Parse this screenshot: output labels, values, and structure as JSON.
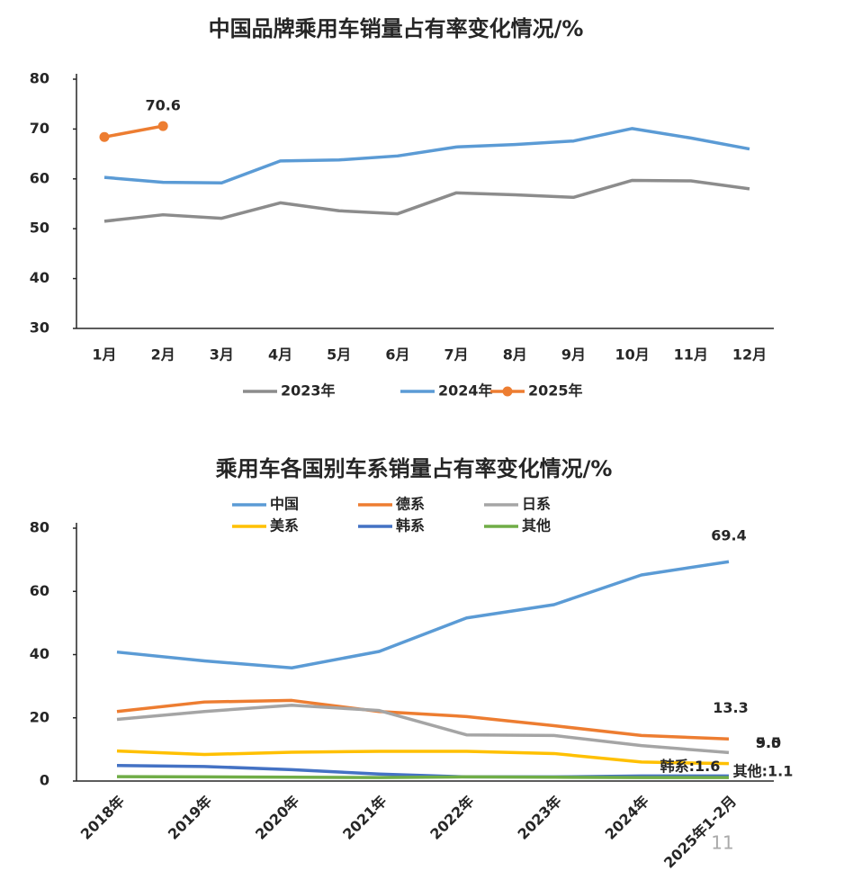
{
  "chart_data": [
    {
      "type": "line",
      "title": "中国品牌乘用车销量占有率变化情况/%",
      "categories": [
        "1月",
        "2月",
        "3月",
        "4月",
        "5月",
        "6月",
        "7月",
        "8月",
        "9月",
        "10月",
        "11月",
        "12月"
      ],
      "series": [
        {
          "name": "2023年",
          "color": "#8c8c8c",
          "values": [
            51.5,
            52.8,
            52.1,
            55.2,
            53.6,
            53.0,
            57.2,
            56.8,
            56.3,
            59.7,
            59.6,
            58.0
          ]
        },
        {
          "name": "2024年",
          "color": "#5b9bd5",
          "values": [
            60.3,
            59.3,
            59.2,
            63.6,
            63.8,
            64.6,
            66.4,
            66.9,
            67.6,
            70.1,
            68.2,
            66.0
          ]
        },
        {
          "name": "2025年",
          "color": "#ed7d31",
          "markers": true,
          "values": [
            68.4,
            70.6,
            null,
            null,
            null,
            null,
            null,
            null,
            null,
            null,
            null,
            null
          ],
          "value_labels": [
            null,
            "70.6",
            null,
            null,
            null,
            null,
            null,
            null,
            null,
            null,
            null,
            null
          ]
        }
      ],
      "ylim": [
        30,
        80
      ],
      "yticks": [
        30,
        40,
        50,
        60,
        70,
        80
      ],
      "grid": false,
      "legend": "bottom"
    },
    {
      "type": "line",
      "title": "乘用车各国别车系销量占有率变化情况/%",
      "categories": [
        "2018年",
        "2019年",
        "2020年",
        "2021年",
        "2022年",
        "2023年",
        "2024年",
        "2025年1-2月"
      ],
      "series": [
        {
          "name": "中国",
          "color": "#5b9bd5",
          "values": [
            40.8,
            38.0,
            35.8,
            41.0,
            51.6,
            55.8,
            65.2,
            69.4
          ],
          "value_labels": [
            null,
            null,
            null,
            null,
            null,
            null,
            null,
            "69.4"
          ]
        },
        {
          "name": "德系",
          "color": "#ed7d31",
          "values": [
            22.0,
            25.0,
            25.5,
            22.0,
            20.4,
            17.5,
            14.4,
            13.3
          ],
          "value_labels": [
            null,
            null,
            null,
            null,
            null,
            null,
            null,
            "13.3"
          ]
        },
        {
          "name": "日系",
          "color": "#a5a5a5",
          "values": [
            19.5,
            22.0,
            24.0,
            22.3,
            14.6,
            14.4,
            11.2,
            9.0
          ],
          "value_labels": [
            null,
            null,
            null,
            null,
            null,
            null,
            null,
            "9.0"
          ]
        },
        {
          "name": "美系",
          "color": "#ffc000",
          "values": [
            9.5,
            8.4,
            9.1,
            9.4,
            9.4,
            8.7,
            6.0,
            5.5
          ],
          "value_labels": [
            null,
            null,
            null,
            null,
            null,
            null,
            null,
            "5.5"
          ]
        },
        {
          "name": "韩系",
          "color": "#4472c4",
          "values": [
            4.9,
            4.6,
            3.6,
            2.2,
            1.3,
            1.3,
            1.6,
            1.6
          ],
          "value_labels": [
            null,
            null,
            null,
            null,
            null,
            null,
            null,
            "韩系:1.6"
          ]
        },
        {
          "name": "其他",
          "color": "#70ad47",
          "values": [
            1.4,
            1.3,
            1.2,
            1.1,
            1.3,
            1.2,
            1.1,
            1.1
          ],
          "value_labels": [
            null,
            null,
            null,
            null,
            null,
            null,
            null,
            "其他:1.1"
          ]
        }
      ],
      "ylim": [
        0,
        80
      ],
      "yticks": [
        0,
        20,
        40,
        60,
        80
      ],
      "grid": false,
      "legend": "top"
    }
  ],
  "page_number": "11"
}
